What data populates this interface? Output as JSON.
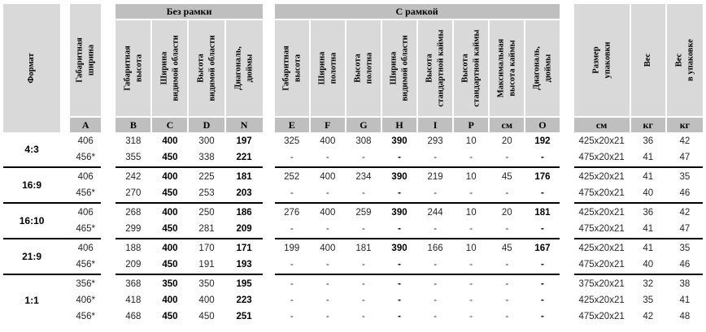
{
  "colors": {
    "header_bg": "#d9d9d9",
    "band_bg": "#bfbfbf",
    "separator": "#000000",
    "text": "#262626"
  },
  "table": {
    "group_titles": {
      "no_frame": "Без рамки",
      "with_frame": "С рамкой"
    },
    "headers": {
      "format": "Формат",
      "overall_width": "Габаритная\nширина",
      "no_frame": [
        "Габаритная\nвысота",
        "Ширина\nвидимой области",
        "Высота\nвидимой области",
        "Диагональ,\nдюймы"
      ],
      "with_frame": [
        "Габаритная\nвысота",
        "Ширина\nполотна",
        "Высота\nполотна",
        "Ширина\nвидимой области",
        "Высота\nстандартной каймы",
        "Высота\nстандартной каймы",
        "Максимальная\nвысота каймы",
        "Диагональ,\nдюймы"
      ],
      "package_size": "Размер\nупаковки",
      "weight": "Вес",
      "weight_packed": "Вес\nв упаковке"
    },
    "letters": {
      "overall_width": "A",
      "no_frame": [
        "B",
        "C",
        "D",
        "N"
      ],
      "with_frame": [
        "E",
        "F",
        "G",
        "H",
        "I",
        "P",
        "см",
        "O"
      ],
      "package": [
        "см",
        "кг",
        "кг"
      ]
    },
    "groups": [
      {
        "format": "4:3",
        "rows": [
          {
            "a": "406",
            "no_frame": [
              "318",
              "400",
              "300",
              "197"
            ],
            "with_frame": [
              "325",
              "400",
              "308",
              "390",
              "293",
              "10",
              "20",
              "192"
            ],
            "package": [
              "425x20x21",
              "36",
              "42"
            ]
          },
          {
            "a": "456*",
            "no_frame": [
              "355",
              "450",
              "338",
              "221"
            ],
            "with_frame": [
              "-",
              "-",
              "-",
              "-",
              "-",
              "-",
              "-",
              "-"
            ],
            "package": [
              "475x20x21",
              "41",
              "47"
            ]
          }
        ]
      },
      {
        "format": "16:9",
        "rows": [
          {
            "a": "406",
            "no_frame": [
              "242",
              "400",
              "225",
              "181"
            ],
            "with_frame": [
              "252",
              "400",
              "234",
              "390",
              "219",
              "10",
              "45",
              "176"
            ],
            "package": [
              "425x20x21",
              "41",
              "35"
            ]
          },
          {
            "a": "456*",
            "no_frame": [
              "270",
              "450",
              "253",
              "203"
            ],
            "with_frame": [
              "-",
              "-",
              "-",
              "-",
              "-",
              "-",
              "-",
              "-"
            ],
            "package": [
              "475x20x21",
              "40",
              "46"
            ]
          }
        ]
      },
      {
        "format": "16:10",
        "rows": [
          {
            "a": "406",
            "no_frame": [
              "268",
              "400",
              "250",
              "186"
            ],
            "with_frame": [
              "276",
              "400",
              "259",
              "390",
              "244",
              "10",
              "20",
              "181"
            ],
            "package": [
              "425x20x21",
              "36",
              "42"
            ]
          },
          {
            "a": "465*",
            "no_frame": [
              "299",
              "450",
              "281",
              "209"
            ],
            "with_frame": [
              "-",
              "-",
              "-",
              "-",
              "-",
              "-",
              "-",
              "-"
            ],
            "package": [
              "475x20x21",
              "41",
              "47"
            ]
          }
        ]
      },
      {
        "format": "21:9",
        "rows": [
          {
            "a": "406",
            "no_frame": [
              "188",
              "400",
              "170",
              "171"
            ],
            "with_frame": [
              "199",
              "400",
              "181",
              "390",
              "166",
              "10",
              "45",
              "167"
            ],
            "package": [
              "425x20x21",
              "41",
              "35"
            ]
          },
          {
            "a": "456*",
            "no_frame": [
              "209",
              "450",
              "191",
              "193"
            ],
            "with_frame": [
              "-",
              "-",
              "-",
              "-",
              "-",
              "-",
              "-",
              "-"
            ],
            "package": [
              "475x20x21",
              "40",
              "46"
            ]
          }
        ]
      },
      {
        "format": "1:1",
        "rows": [
          {
            "a": "356*",
            "no_frame": [
              "368",
              "350",
              "350",
              "195"
            ],
            "with_frame": [
              "-",
              "-",
              "-",
              "-",
              "-",
              "-",
              "-",
              "-"
            ],
            "package": [
              "375x20x21",
              "32",
              "38"
            ]
          },
          {
            "a": "406*",
            "no_frame": [
              "418",
              "400",
              "400",
              "223"
            ],
            "with_frame": [
              "-",
              "-",
              "-",
              "-",
              "-",
              "-",
              "-",
              "-"
            ],
            "package": [
              "425x20x21",
              "35",
              "41"
            ]
          },
          {
            "a": "456*",
            "no_frame": [
              "468",
              "450",
              "450",
              "251"
            ],
            "with_frame": [
              "-",
              "-",
              "-",
              "-",
              "-",
              "-",
              "-",
              "-"
            ],
            "package": [
              "475x20x21",
              "42",
              "48"
            ]
          }
        ]
      }
    ]
  }
}
